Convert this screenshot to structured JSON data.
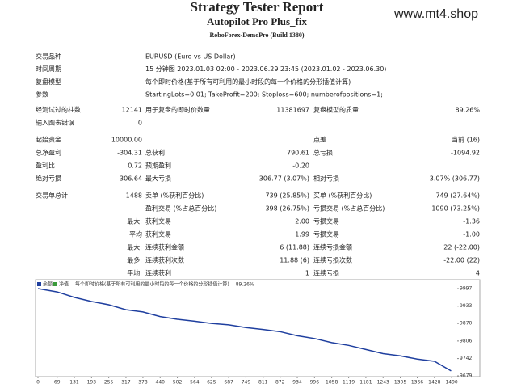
{
  "header": {
    "title": "Strategy Tester Report",
    "subtitle": "Autopilot Pro Plus_fix",
    "server": "RoboForex-DemoPro (Build 1380)",
    "watermark": "www.mt4.shop"
  },
  "info": [
    [
      "交易品种",
      "EURUSD (Euro vs US Dollar)"
    ],
    [
      "时间周期",
      "15 分钟图 2023.01.03 02:00 - 2023.06.29 23:45 (2023.01.02 - 2023.06.30)"
    ],
    [
      "复盘模型",
      "每个即时价格(基于所有可利用的最小时段的每一个价格的分形插值计算)"
    ],
    [
      "参数",
      "StartingLots=0.01; TakeProfit=200; Stoploss=600; numberofpositions=1;"
    ]
  ],
  "groups": [
    [
      [
        "经测试过的柱数",
        "12141",
        "用于复盘的即时价数量",
        "11381697",
        "复盘模型的质量",
        "89.26%"
      ],
      [
        "输入图表错误",
        "0",
        null,
        null,
        null,
        null
      ]
    ],
    [
      [
        "起始资金",
        "10000.00",
        null,
        null,
        "点差",
        "当前 (16)"
      ],
      [
        "总净盈利",
        "-304.31",
        "总获利",
        "790.61",
        "总亏损",
        "-1094.92"
      ],
      [
        "盈利比",
        "0.72",
        "预期盈利",
        "-0.20",
        null,
        null
      ],
      [
        "绝对亏损",
        "306.64",
        "最大亏损",
        "306.77 (3.07%)",
        "相对亏损",
        "3.07% (306.77)"
      ]
    ],
    [
      [
        "交易单总计",
        "1488",
        "卖单 (%获利百分比)",
        "739 (25.85%)",
        "买单 (%获利百分比)",
        "749 (27.64%)"
      ],
      [
        null,
        null,
        "盈利交易 (%占总百分比)",
        "398 (26.75%)",
        "亏损交易 (%占总百分比)",
        "1090 (73.25%)"
      ],
      [
        null,
        "最大:",
        "获利交易",
        "2.00",
        "亏损交易",
        "-1.36"
      ],
      [
        null,
        "平均",
        "获利交易",
        "1.99",
        "亏损交易",
        "-1.00"
      ],
      [
        null,
        "最大:",
        "连续获利金额",
        "6 (11.88)",
        "连续亏损金额",
        "22 (-22.00)"
      ],
      [
        null,
        "最多:",
        "连续获利次数",
        "11.88 (6)",
        "连续亏损次数",
        "-22.00 (22)"
      ],
      [
        null,
        "平均:",
        "连续获利",
        "1",
        "连续亏损",
        "4"
      ]
    ]
  ],
  "chart_data": {
    "type": "line",
    "header_parts": [
      "净值",
      "每个即时价格(基于所有可利用的最小时段的每一个价格的分形插值计算)",
      "89.26%"
    ],
    "x": [
      0,
      69,
      131,
      193,
      255,
      317,
      378,
      440,
      502,
      564,
      625,
      687,
      749,
      811,
      872,
      934,
      996,
      1058,
      1119,
      1181,
      1243,
      1305,
      1366,
      1428,
      1488
    ],
    "series": [
      {
        "name": "余额",
        "color": "#1f3f9f",
        "values": [
          9997,
          9985,
          9965,
          9950,
          9938,
          9920,
          9912,
          9895,
          9885,
          9878,
          9870,
          9865,
          9855,
          9848,
          9840,
          9825,
          9815,
          9800,
          9790,
          9775,
          9760,
          9752,
          9740,
          9732,
          9697
        ]
      }
    ],
    "xlim": [
      0,
      1510
    ],
    "xticks": [
      0,
      69,
      131,
      193,
      255,
      317,
      378,
      440,
      502,
      564,
      625,
      687,
      749,
      811,
      872,
      934,
      996,
      1058,
      1119,
      1181,
      1243,
      1305,
      1366,
      1428,
      1490
    ],
    "ylim": [
      9679,
      9997
    ],
    "yticks": [
      9997,
      9933,
      9870,
      9806,
      9742,
      9679
    ]
  }
}
